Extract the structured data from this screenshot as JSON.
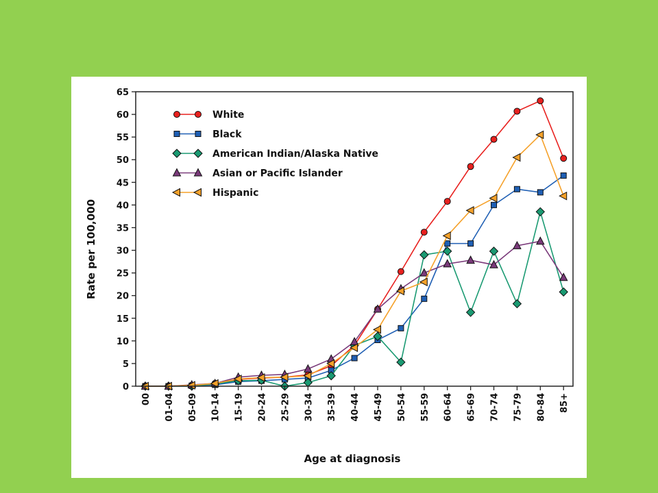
{
  "chart_data": {
    "type": "line",
    "xlabel": "Age at diagnosis",
    "ylabel": "Rate per 100,000",
    "ylim": [
      0,
      65
    ],
    "yticks": [
      0,
      5,
      10,
      15,
      20,
      25,
      30,
      35,
      40,
      45,
      50,
      55,
      60,
      65
    ],
    "categories": [
      "00",
      "01-04",
      "05-09",
      "10-14",
      "15-19",
      "20-24",
      "25-29",
      "30-34",
      "35-39",
      "40-44",
      "45-49",
      "50-54",
      "55-59",
      "60-64",
      "65-69",
      "70-74",
      "75-79",
      "80-84",
      "85+"
    ],
    "legend_position": "top-left",
    "grid": false,
    "series": [
      {
        "name": "White",
        "color": "#e8201e",
        "marker": "circle",
        "values": [
          0,
          0,
          0.2,
          0.6,
          1.5,
          1.8,
          2.0,
          2.5,
          4.5,
          9.0,
          17.0,
          25.3,
          34.0,
          40.8,
          48.5,
          54.5,
          60.7,
          63.0,
          50.3
        ]
      },
      {
        "name": "Black",
        "color": "#1f5fb4",
        "marker": "square",
        "values": [
          0,
          0,
          0.1,
          0.3,
          1.0,
          1.2,
          1.5,
          1.8,
          3.5,
          6.2,
          10.2,
          12.8,
          19.3,
          31.5,
          31.5,
          40.0,
          43.5,
          42.8,
          46.5
        ]
      },
      {
        "name": "American Indian/Alaska Native",
        "color": "#1a9a72",
        "marker": "diamond",
        "values": [
          0,
          0,
          0,
          0.5,
          1.2,
          1.3,
          0,
          0.8,
          2.3,
          9.0,
          11.0,
          5.3,
          29.0,
          29.8,
          16.3,
          29.8,
          18.2,
          38.5,
          20.8
        ]
      },
      {
        "name": "Asian or Pacific Islander",
        "color": "#7a3a7a",
        "marker": "triangle-up",
        "values": [
          0,
          0,
          0.3,
          0.6,
          2.0,
          2.4,
          2.6,
          3.8,
          6.0,
          9.8,
          17.0,
          21.5,
          25.0,
          27.0,
          27.8,
          26.8,
          31.0,
          32.0,
          24.0
        ]
      },
      {
        "name": "Hispanic",
        "color": "#f5a12a",
        "marker": "triangle-left",
        "values": [
          0,
          0,
          0.2,
          0.6,
          1.6,
          1.9,
          2.0,
          2.3,
          5.0,
          8.5,
          12.5,
          21.0,
          23.0,
          33.2,
          38.8,
          41.5,
          50.5,
          55.5,
          42.0
        ]
      }
    ]
  }
}
